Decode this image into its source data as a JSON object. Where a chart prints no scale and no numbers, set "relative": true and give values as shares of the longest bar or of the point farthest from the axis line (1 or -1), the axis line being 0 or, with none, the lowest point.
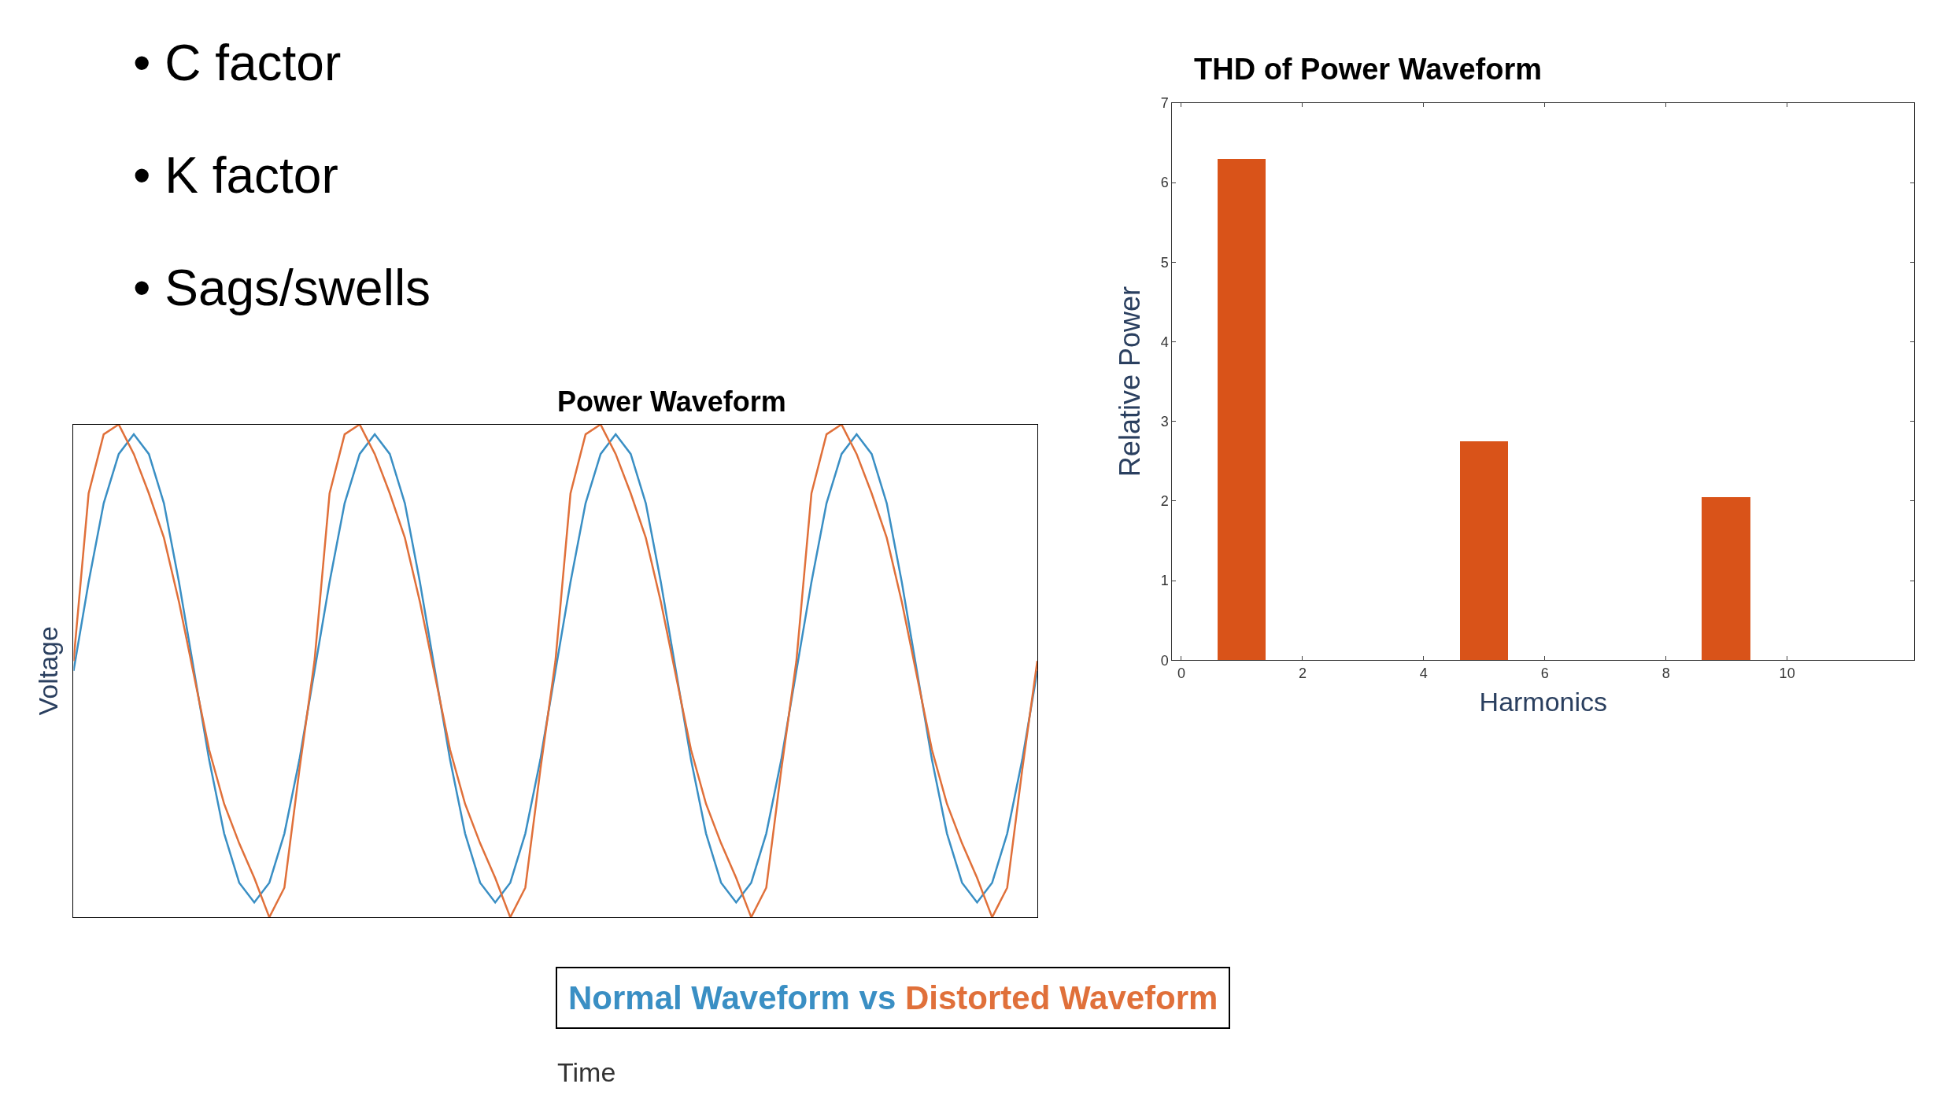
{
  "chart_data": [
    {
      "type": "other",
      "annotations": [
        "• C factor",
        "• K factor",
        "• Sags/swells"
      ]
    },
    {
      "type": "bar",
      "title": "THD of Power Waveform",
      "xlabel": "Harmonics",
      "ylabel": "Relative Power",
      "x": [
        1,
        2,
        3,
        4,
        5,
        6,
        7,
        8,
        9,
        10,
        11
      ],
      "values": [
        6.3,
        0,
        0,
        0,
        2.75,
        0,
        0,
        0,
        2.05,
        0,
        0
      ],
      "color": "#d95319",
      "xlim": [
        -0.15,
        12.1
      ],
      "xticks": [
        0,
        2,
        4,
        6,
        8,
        10
      ],
      "ylim": [
        0,
        7
      ],
      "yticks": [
        0,
        1,
        2,
        3,
        4,
        5,
        6,
        7
      ]
    },
    {
      "type": "line",
      "title": "Power Waveform",
      "xlabel": "Time",
      "ylabel": "Voltage",
      "relative": true,
      "annotations": [
        "vs"
      ],
      "categories": [
        null,
        null,
        null,
        null,
        null,
        null,
        null,
        null,
        null,
        null,
        null,
        null,
        null,
        null,
        null,
        null,
        null,
        null,
        null,
        null,
        null,
        null,
        null,
        null,
        null,
        null,
        null,
        null,
        null,
        null,
        null,
        null,
        null,
        null,
        null,
        null,
        null,
        null,
        null,
        null,
        null,
        null,
        null,
        null,
        null,
        null,
        null,
        null,
        null,
        null,
        null,
        null,
        null,
        null,
        null,
        null,
        null,
        null,
        null,
        null,
        null,
        null,
        null,
        null,
        null
      ],
      "series": [
        {
          "name": "Normal Waveform",
          "color": "#3a8fc4",
          "values": [
            0.5,
            0.68,
            0.84,
            0.94,
            0.98,
            0.94,
            0.84,
            0.68,
            0.5,
            0.32,
            0.17,
            0.07,
            0.03,
            0.07,
            0.17,
            0.32,
            0.5,
            0.68,
            0.84,
            0.94,
            0.98,
            0.94,
            0.84,
            0.68,
            0.5,
            0.32,
            0.17,
            0.07,
            0.03,
            0.07,
            0.17,
            0.32,
            0.5,
            0.68,
            0.84,
            0.94,
            0.98,
            0.94,
            0.84,
            0.68,
            0.5,
            0.32,
            0.17,
            0.07,
            0.03,
            0.07,
            0.17,
            0.32,
            0.5,
            0.68,
            0.84,
            0.94,
            0.98,
            0.94,
            0.84,
            0.68,
            0.5,
            0.32,
            0.17,
            0.07,
            0.03,
            0.07,
            0.17,
            0.32,
            0.5
          ]
        },
        {
          "name": "Distorted Waveform",
          "color": "#e0703a",
          "values": [
            0.52,
            0.86,
            0.98,
            1.0,
            0.94,
            0.86,
            0.77,
            0.64,
            0.49,
            0.34,
            0.23,
            0.15,
            0.08,
            0.0,
            0.06,
            0.3,
            0.52,
            0.86,
            0.98,
            1.0,
            0.94,
            0.86,
            0.77,
            0.64,
            0.49,
            0.34,
            0.23,
            0.15,
            0.08,
            0.0,
            0.06,
            0.3,
            0.52,
            0.86,
            0.98,
            1.0,
            0.94,
            0.86,
            0.77,
            0.64,
            0.49,
            0.34,
            0.23,
            0.15,
            0.08,
            0.0,
            0.06,
            0.3,
            0.52,
            0.86,
            0.98,
            1.0,
            0.94,
            0.86,
            0.77,
            0.64,
            0.49,
            0.34,
            0.23,
            0.15,
            0.08,
            0.0,
            0.06,
            0.3,
            0.52
          ]
        }
      ]
    }
  ]
}
